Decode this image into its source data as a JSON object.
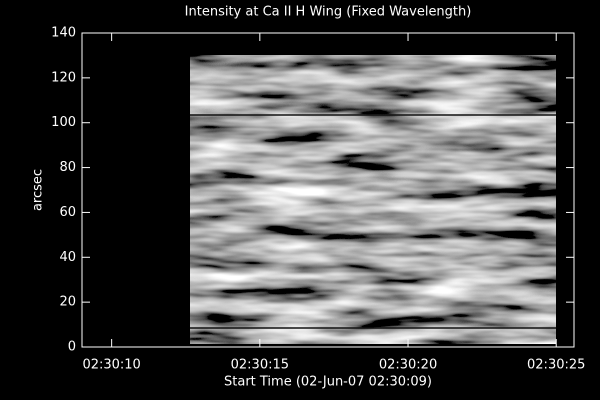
{
  "chart_data": {
    "type": "image",
    "title": "Intensity at Ca II H Wing (Fixed Wavelength)",
    "x_label": "Start Time (02-Jun-07 02:30:09)",
    "y_label": "arcsec",
    "xlim": [
      0,
      16.6
    ],
    "xticks": [
      {
        "value": 1,
        "label": "02:30:10"
      },
      {
        "value": 6,
        "label": "02:30:15"
      },
      {
        "value": 11,
        "label": "02:30:20"
      },
      {
        "value": 16,
        "label": "02:30:25"
      }
    ],
    "ylim": [
      0,
      140
    ],
    "yticks": [
      0,
      20,
      40,
      60,
      80,
      100,
      120,
      140
    ]
  }
}
